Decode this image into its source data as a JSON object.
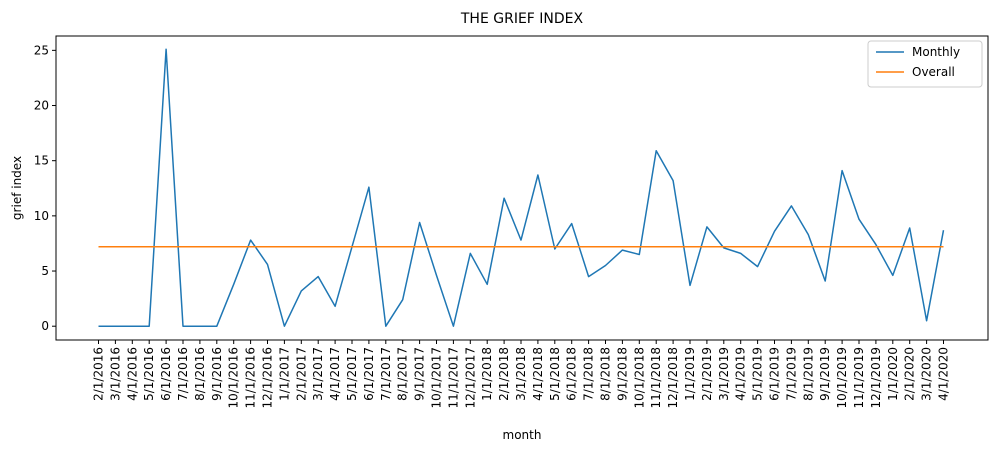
{
  "chart_data": {
    "type": "line",
    "title": "THE GRIEF INDEX",
    "xlabel": "month",
    "ylabel": "grief index",
    "ylim": [
      -1.25,
      26.3
    ],
    "yticks": [
      0,
      5,
      10,
      15,
      20,
      25
    ],
    "grid": false,
    "legend_position": "top-right",
    "categories": [
      "2/1/2016",
      "3/1/2016",
      "4/1/2016",
      "5/1/2016",
      "6/1/2016",
      "7/1/2016",
      "8/1/2016",
      "9/1/2016",
      "10/1/2016",
      "11/1/2016",
      "12/1/2016",
      "1/1/2017",
      "2/1/2017",
      "3/1/2017",
      "4/1/2017",
      "5/1/2017",
      "6/1/2017",
      "7/1/2017",
      "8/1/2017",
      "9/1/2017",
      "10/1/2017",
      "11/1/2017",
      "12/1/2017",
      "1/1/2018",
      "2/1/2018",
      "3/1/2018",
      "4/1/2018",
      "5/1/2018",
      "6/1/2018",
      "7/1/2018",
      "8/1/2018",
      "9/1/2018",
      "10/1/2018",
      "11/1/2018",
      "12/1/2018",
      "1/1/2019",
      "2/1/2019",
      "3/1/2019",
      "4/1/2019",
      "5/1/2019",
      "6/1/2019",
      "7/1/2019",
      "8/1/2019",
      "9/1/2019",
      "10/1/2019",
      "11/1/2019",
      "12/1/2019",
      "1/1/2020",
      "2/1/2020",
      "3/1/2020",
      "4/1/2020"
    ],
    "series": [
      {
        "name": "Monthly",
        "color": "#1f77b4",
        "values": [
          0,
          0,
          0,
          0,
          25.1,
          0,
          0,
          0,
          3.8,
          7.8,
          5.6,
          0,
          3.2,
          4.5,
          1.8,
          7.2,
          12.6,
          0,
          2.4,
          9.4,
          4.6,
          0,
          6.6,
          3.8,
          11.6,
          7.8,
          13.7,
          7.0,
          9.3,
          4.5,
          5.5,
          6.9,
          6.5,
          15.9,
          13.2,
          3.7,
          9.0,
          7.1,
          6.6,
          5.4,
          8.6,
          10.9,
          8.3,
          4.1,
          14.1,
          9.7,
          7.4,
          4.6,
          8.9,
          0.5,
          8.7
        ]
      },
      {
        "name": "Overall",
        "color": "#ff7f0e",
        "constant": 7.2
      }
    ]
  }
}
